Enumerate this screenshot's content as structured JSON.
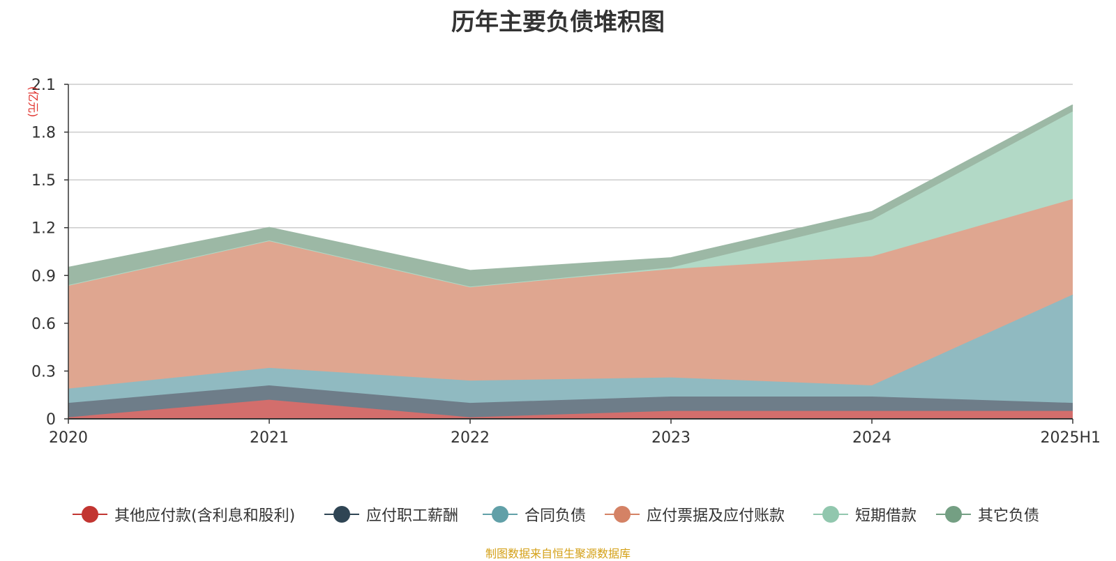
{
  "title": "历年主要负债堆积图",
  "footer": "制图数据来自恒生聚源数据库",
  "chart_data": {
    "type": "area",
    "stacked": true,
    "title": "历年主要负债堆积图",
    "ylabel": "(亿元)",
    "xlabel": "",
    "ylim": [
      0,
      2.1
    ],
    "yticks": [
      "0",
      "0.3",
      "0.6",
      "0.9",
      "1.2",
      "1.5",
      "1.8",
      "2.1"
    ],
    "categories": [
      "2020",
      "2021",
      "2022",
      "2023",
      "2024",
      "2025H1"
    ],
    "grid": true,
    "legend_position": "bottom",
    "series": [
      {
        "name": "其他应付款(含利息和股利)",
        "color": "#c23531",
        "fill": "#d36e6c",
        "values": [
          0.01,
          0.12,
          0.01,
          0.05,
          0.05,
          0.05
        ]
      },
      {
        "name": "应付职工薪酬",
        "color": "#2f4554",
        "fill": "#6e7d89",
        "values": [
          0.09,
          0.09,
          0.09,
          0.09,
          0.09,
          0.05
        ]
      },
      {
        "name": "合同负债",
        "color": "#61a0a8",
        "fill": "#90bac1",
        "values": [
          0.09,
          0.11,
          0.14,
          0.12,
          0.07,
          0.68
        ]
      },
      {
        "name": "应付票据及应付账款",
        "color": "#d48265",
        "fill": "#dfa690",
        "values": [
          0.65,
          0.8,
          0.59,
          0.68,
          0.81,
          0.6
        ]
      },
      {
        "name": "短期借款",
        "color": "#91c7ae",
        "fill": "#b2d9c6",
        "values": [
          0.0,
          0.0,
          0.0,
          0.01,
          0.23,
          0.55
        ]
      },
      {
        "name": "其它负债",
        "color": "#749f83",
        "fill": "#9cb8a5",
        "values": [
          0.11,
          0.08,
          0.1,
          0.06,
          0.05,
          0.04
        ]
      }
    ]
  }
}
